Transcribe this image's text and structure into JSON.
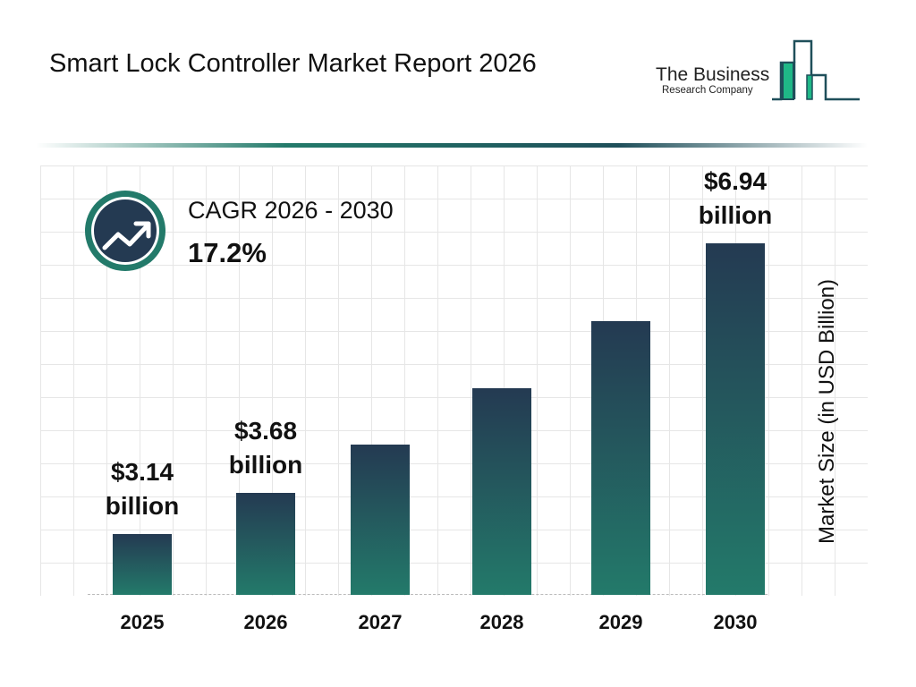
{
  "title": "Smart Lock Controller Market Report 2026",
  "logo": {
    "line1": "The Business",
    "line2": "Research Company",
    "colors": {
      "dark": "#1f4f5a",
      "accent": "#1fb887"
    }
  },
  "cagr": {
    "label": "CAGR 2026 - 2030",
    "value": "17.2%",
    "icon": "trending-up-icon"
  },
  "chart_data": {
    "type": "bar",
    "categories": [
      "2025",
      "2026",
      "2027",
      "2028",
      "2029",
      "2030"
    ],
    "values": [
      3.14,
      3.68,
      4.31,
      5.05,
      5.92,
      6.94
    ],
    "data_labels": [
      {
        "line1": "$3.14",
        "line2": "billion"
      },
      {
        "line1": "$3.68",
        "line2": "billion"
      },
      null,
      null,
      null,
      {
        "line1": "$6.94",
        "line2": "billion"
      }
    ],
    "ylabel": "Market Size (in USD Billion)",
    "xlabel": "",
    "grid": true,
    "bar_gradient": [
      "#243a52",
      "#237a6a"
    ]
  }
}
